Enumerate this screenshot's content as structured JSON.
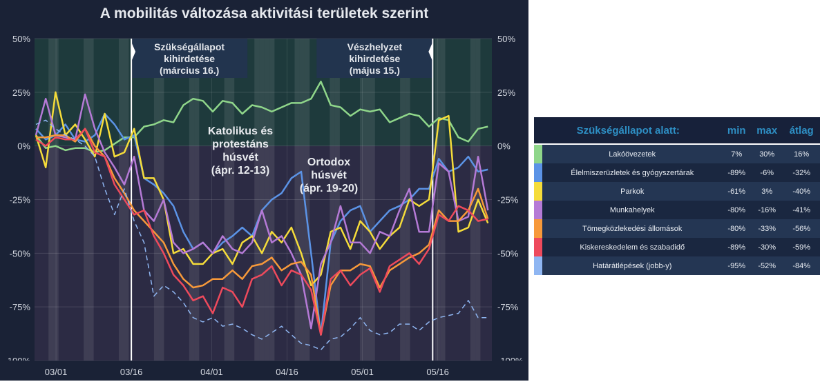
{
  "title": "A mobilitás változása aktivitási területek szerint",
  "chart_data": {
    "type": "line",
    "title": "A mobilitás változása aktivitási területek szerint",
    "x_start": "02/26",
    "x_days": 90,
    "ylim": [
      -100,
      50
    ],
    "yticks": [
      "50%",
      "25%",
      "0%",
      "-25%",
      "-50%",
      "-75%",
      "-100%"
    ],
    "ytick_values": [
      50,
      25,
      0,
      -25,
      -50,
      -75,
      -100
    ],
    "xticks": [
      {
        "label": "03/01",
        "day": 4
      },
      {
        "label": "03/16",
        "day": 19
      },
      {
        "label": "04/01",
        "day": 35
      },
      {
        "label": "04/16",
        "day": 50
      },
      {
        "label": "05/01",
        "day": 65
      },
      {
        "label": "05/16",
        "day": 80
      }
    ],
    "shaded_days": [
      3,
      4,
      10,
      11,
      17,
      18,
      24,
      25,
      31,
      32,
      38,
      39,
      44,
      45,
      46,
      47,
      52,
      53,
      54,
      59,
      60,
      65,
      66,
      67,
      73,
      74,
      80,
      81,
      87,
      88
    ],
    "markers": [
      {
        "day": 19,
        "label_lines": [
          "Szükségállapot",
          "kihirdetése",
          "(március 16.)"
        ]
      },
      {
        "day": 79,
        "label_lines": [
          "Vészhelyzet",
          "kihirdetése",
          "(május 15.)"
        ]
      }
    ],
    "annotations": [
      {
        "lines": [
          "Katolikus és",
          "protestáns",
          "húsvét",
          "(ápr. 12-13)"
        ]
      },
      {
        "lines": [
          "Ortodox",
          "húsvét",
          "(ápr. 19-20)"
        ]
      }
    ],
    "series": [
      {
        "name": "Lakóövezetek",
        "color": "#8fd68a",
        "dashed": false,
        "values": [
          5,
          -1,
          0,
          -2,
          -1,
          -1,
          -3,
          -2,
          1,
          4,
          4,
          9,
          10,
          12,
          11,
          19,
          22,
          21,
          16,
          21,
          20,
          15,
          19,
          18,
          16,
          18,
          20,
          20,
          22,
          30,
          19,
          18,
          14,
          17,
          16,
          17,
          11,
          13,
          15,
          14,
          9,
          13,
          12,
          4,
          2,
          8,
          9
        ]
      },
      {
        "name": "Élelmiszerüzletek és gyógyszertárak",
        "color": "#5b93e6",
        "dashed": false,
        "values": [
          8,
          3,
          5,
          10,
          3,
          2,
          5,
          15,
          10,
          3,
          5,
          -15,
          -18,
          -22,
          -28,
          -40,
          -48,
          -45,
          -50,
          -45,
          -42,
          -38,
          -42,
          -30,
          -25,
          -22,
          -15,
          -12,
          -50,
          -88,
          -45,
          -35,
          -30,
          -28,
          -40,
          -35,
          -30,
          -28,
          -25,
          -20,
          -20,
          -6,
          -12,
          -10,
          -5,
          -12,
          -11
        ]
      },
      {
        "name": "Parkok",
        "color": "#f5dc3a",
        "dashed": false,
        "values": [
          5,
          -10,
          25,
          5,
          10,
          3,
          -5,
          15,
          -5,
          -3,
          8,
          -15,
          -15,
          -25,
          -50,
          -48,
          -55,
          -55,
          -50,
          -48,
          -55,
          -45,
          -42,
          -50,
          -40,
          -45,
          -38,
          -50,
          -65,
          -60,
          -40,
          -38,
          -48,
          -35,
          -40,
          -48,
          -42,
          -38,
          -25,
          -28,
          -25,
          12,
          14,
          -40,
          -38,
          -25,
          -36
        ]
      },
      {
        "name": "Munkahelyek",
        "color": "#b57ad6",
        "dashed": false,
        "values": [
          5,
          22,
          5,
          4,
          3,
          24,
          8,
          -3,
          -10,
          -18,
          -5,
          -30,
          -35,
          -25,
          -45,
          -50,
          -48,
          -45,
          -50,
          -42,
          -48,
          -50,
          -45,
          -30,
          -45,
          -42,
          -50,
          -60,
          -85,
          -55,
          -45,
          -28,
          -45,
          -45,
          -50,
          -40,
          -42,
          -30,
          -20,
          -40,
          -40,
          -8,
          -12,
          -35,
          -33,
          -5,
          -30
        ]
      },
      {
        "name": "Tömegközlekedési állomások",
        "color": "#f7993a",
        "dashed": false,
        "values": [
          4,
          4,
          5,
          5,
          2,
          8,
          0,
          -5,
          -15,
          -22,
          -30,
          -35,
          -40,
          -45,
          -55,
          -62,
          -66,
          -65,
          -62,
          -62,
          -58,
          -62,
          -56,
          -55,
          -52,
          -58,
          -55,
          -54,
          -60,
          -88,
          -65,
          -58,
          -58,
          -55,
          -56,
          -66,
          -58,
          -55,
          -52,
          -50,
          -46,
          -30,
          -35,
          -35,
          -30,
          -20,
          -34
        ]
      },
      {
        "name": "Kiskereskedelem és szabadidő",
        "color": "#ee4a5c",
        "dashed": false,
        "values": [
          3,
          0,
          4,
          3,
          3,
          8,
          -3,
          -5,
          -18,
          -25,
          -32,
          -30,
          -42,
          -50,
          -60,
          -65,
          -72,
          -70,
          -78,
          -66,
          -68,
          -75,
          -62,
          -60,
          -56,
          -65,
          -58,
          -60,
          -67,
          -88,
          -62,
          -58,
          -65,
          -60,
          -57,
          -68,
          -56,
          -53,
          -50,
          -55,
          -48,
          -32,
          -35,
          -28,
          -30,
          -35,
          -34
        ]
      },
      {
        "name": "Határátlépések (jobb-y)",
        "color": "#8fb6f2",
        "dashed": true,
        "values": [
          10,
          12,
          8,
          5,
          3,
          0,
          -5,
          -20,
          -32,
          -20,
          -35,
          -45,
          -70,
          -65,
          -68,
          -73,
          -80,
          -82,
          -80,
          -84,
          -83,
          -85,
          -88,
          -90,
          -87,
          -84,
          -88,
          -92,
          -93,
          -95,
          -90,
          -89,
          -85,
          -80,
          -86,
          -88,
          -87,
          -83,
          -83,
          -86,
          -82,
          -80,
          -79,
          -78,
          -72,
          -80,
          -80
        ]
      }
    ]
  },
  "table": {
    "headers": [
      "Szükségállapot alatt:",
      "min",
      "max",
      "átlag"
    ],
    "rows": [
      {
        "name": "Lakóövezetek",
        "color": "#8fd68a",
        "min": "7%",
        "max": "30%",
        "avg": "16%"
      },
      {
        "name": "Élelmiszerüzletek és gyógyszertárak",
        "color": "#5b93e6",
        "min": "-89%",
        "max": "-6%",
        "avg": "-32%"
      },
      {
        "name": "Parkok",
        "color": "#f5dc3a",
        "min": "-61%",
        "max": "3%",
        "avg": "-40%"
      },
      {
        "name": "Munkahelyek",
        "color": "#b57ad6",
        "min": "-80%",
        "max": "-16%",
        "avg": "-41%"
      },
      {
        "name": "Tömegközlekedési állomások",
        "color": "#f7993a",
        "min": "-80%",
        "max": "-33%",
        "avg": "-56%"
      },
      {
        "name": "Kiskereskedelem és szabadidő",
        "color": "#ee4a5c",
        "min": "-89%",
        "max": "-30%",
        "avg": "-59%"
      },
      {
        "name": "Határátlépések (jobb-y)",
        "color": "#8fb6f2",
        "min": "-95%",
        "max": "-52%",
        "avg": "-84%"
      }
    ]
  }
}
